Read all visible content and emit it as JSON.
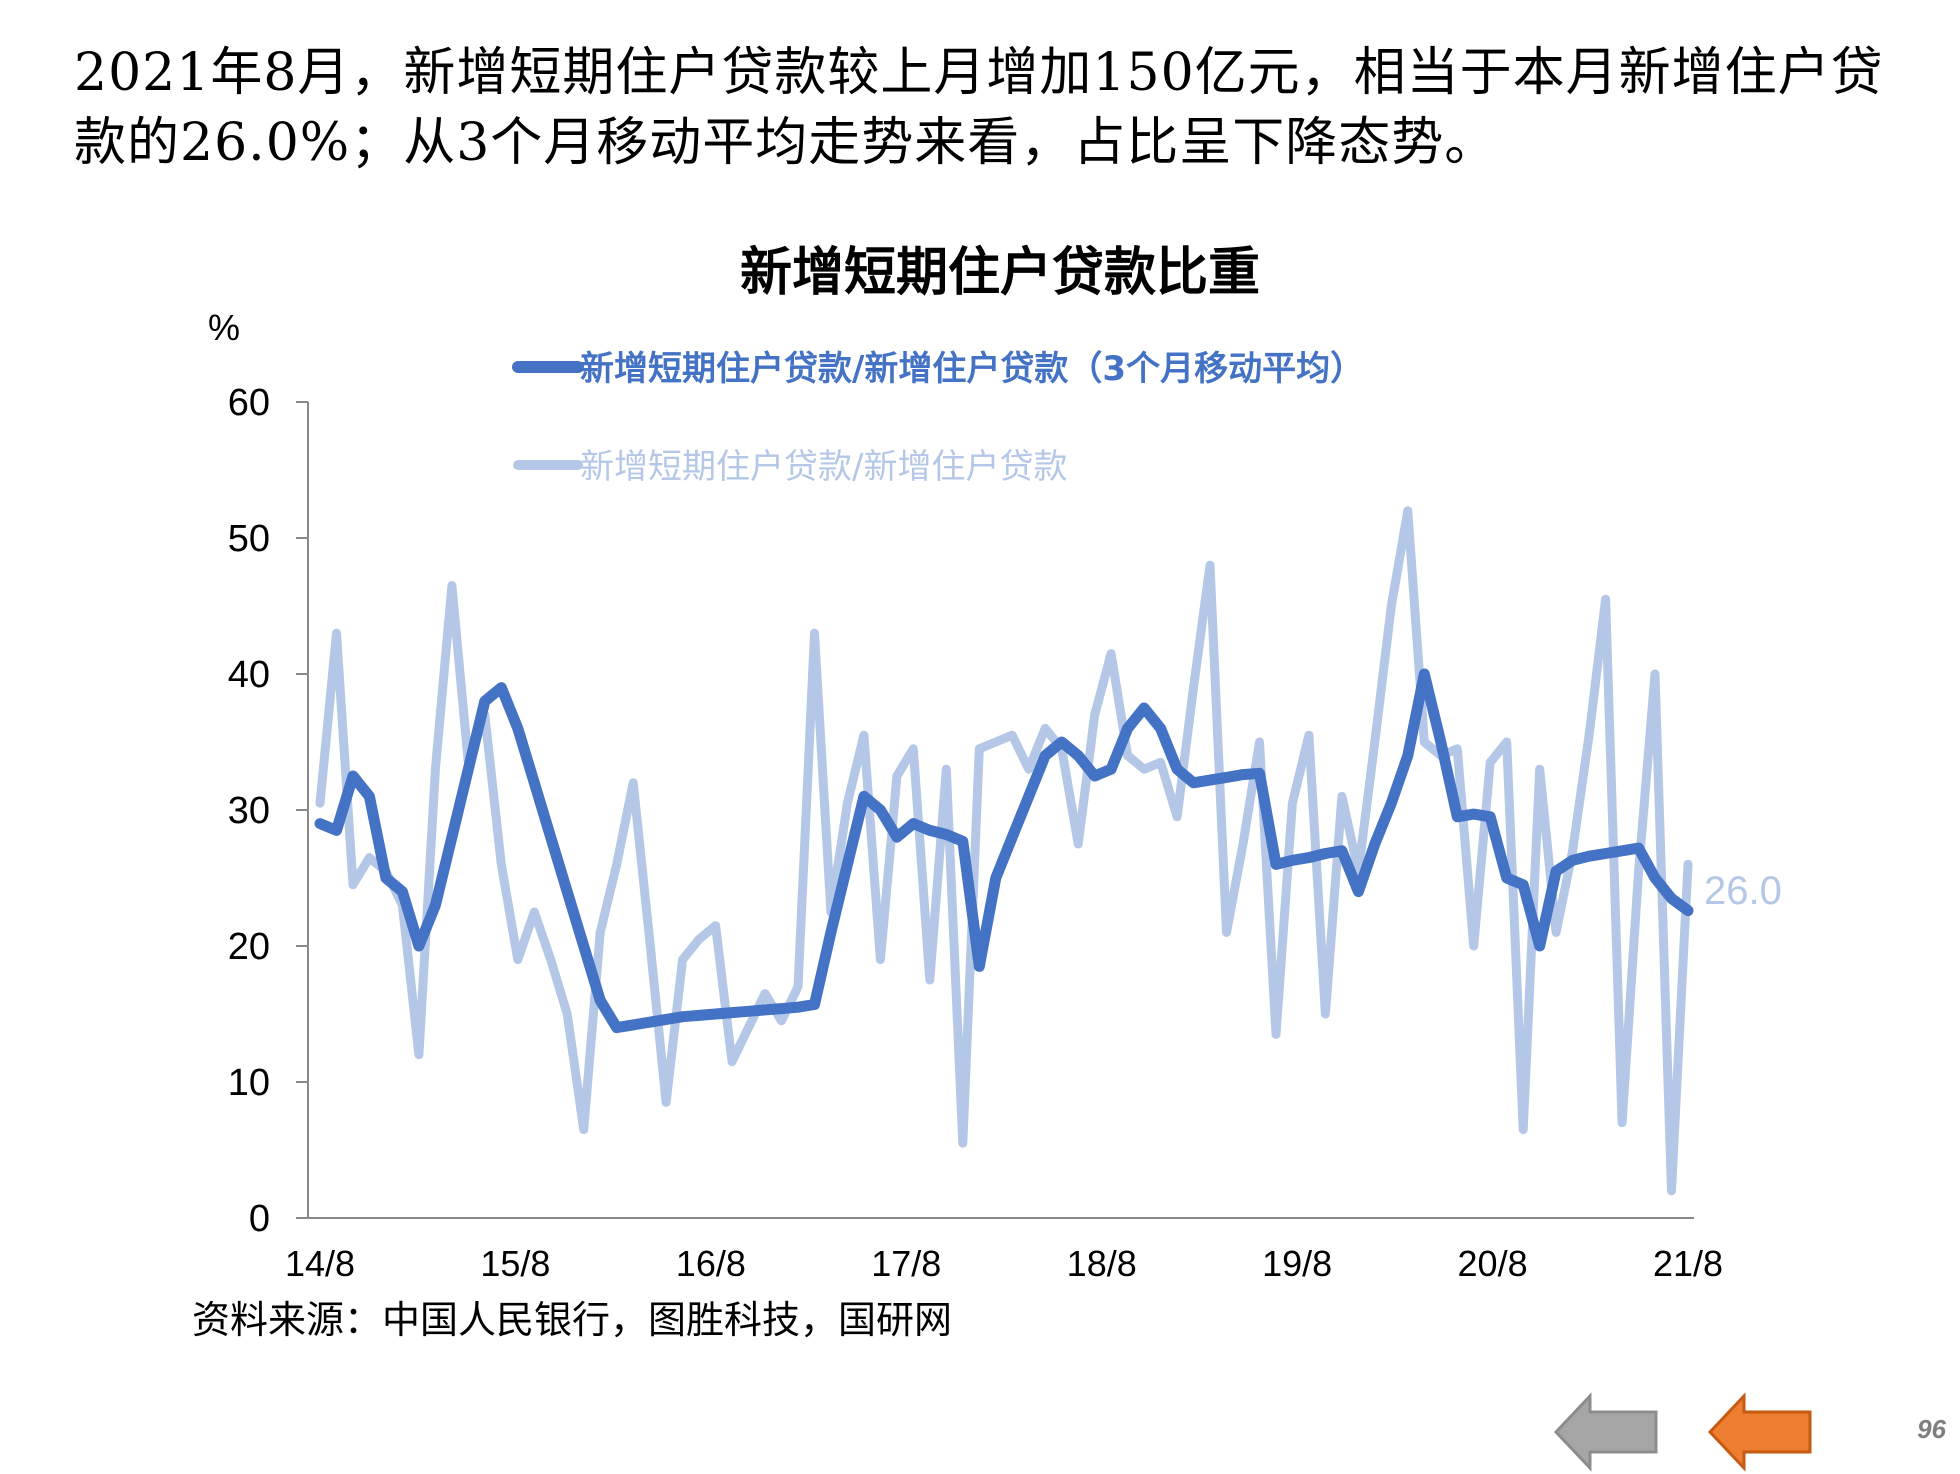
{
  "headline": "2021年8月，新增短期住户贷款较上月增加150亿元，相当于本月新增住户贷款的26.0%；从3个月移动平均走势来看，占比呈下降态势。",
  "source": "资料来源：中国人民银行，图胜科技，国研网",
  "page_number": "96",
  "navigation": {
    "prev_icon": "arrow-left-gray-icon",
    "next_icon": "arrow-left-orange-icon"
  },
  "colors": {
    "ma3": "#4472C4",
    "monthly": "#B4C7E7",
    "prev_arrow": "#A6A6A6",
    "next_arrow": "#ED7D31"
  },
  "chart_data": {
    "type": "line",
    "title": "新增短期住户贷款比重",
    "ylabel": "%",
    "ylim": [
      0,
      60
    ],
    "yticks": [
      0,
      10,
      20,
      30,
      40,
      50,
      60
    ],
    "xticks": [
      "14/8",
      "15/8",
      "16/8",
      "17/8",
      "18/8",
      "19/8",
      "20/8",
      "21/8"
    ],
    "legend_position": "top",
    "grid": false,
    "end_label": "26.0",
    "series": [
      {
        "name": "新增短期住户贷款/新增住户贷款（3个月移动平均）",
        "color": "#4472C4",
        "values": [
          29,
          28.5,
          32.5,
          31,
          25,
          24,
          20,
          23,
          28,
          33,
          38,
          39,
          36,
          32,
          28,
          24,
          20,
          16,
          14,
          14.2,
          14.4,
          14.6,
          14.8,
          14.9,
          15,
          15.1,
          15.2,
          15.3,
          15.4,
          15.5,
          15.7,
          21,
          26,
          31,
          30,
          28,
          29,
          28.5,
          28.2,
          27.7,
          18.5,
          25,
          28,
          31,
          34,
          35,
          34,
          32.5,
          33,
          36,
          37.5,
          36,
          33,
          32,
          32.2,
          32.4,
          32.6,
          32.7,
          26,
          26.3,
          26.5,
          26.8,
          27,
          24,
          27.5,
          30.5,
          34,
          40,
          35,
          29.5,
          29.7,
          29.5,
          25,
          24.5,
          20,
          25.5,
          26.3,
          26.6,
          26.8,
          27,
          27.2,
          25,
          23.5,
          22.6
        ]
      },
      {
        "name": "新增短期住户贷款/新增住户贷款",
        "color": "#B4C7E7",
        "values": [
          30.5,
          43,
          24.5,
          26.5,
          25.5,
          23,
          12,
          33,
          46.5,
          33.5,
          37,
          26,
          19,
          22.5,
          19,
          15,
          6.5,
          21,
          26,
          32,
          20.5,
          8.5,
          19,
          20.5,
          21.5,
          11.5,
          14,
          16.5,
          14.5,
          17,
          43,
          22.5,
          30.5,
          35.5,
          19,
          32.5,
          34.5,
          17.5,
          33,
          5.5,
          34.5,
          35,
          35.5,
          33,
          36,
          34.5,
          27.5,
          37,
          41.5,
          34,
          33,
          33.5,
          29.5,
          39,
          48,
          21,
          27.5,
          35,
          13.5,
          30.5,
          35.5,
          15,
          31,
          25.5,
          35,
          45,
          52,
          35,
          34,
          34.5,
          20,
          33.5,
          35,
          6.5,
          33,
          21,
          27,
          35.5,
          45.5,
          7,
          25.5,
          40,
          2,
          26
        ]
      }
    ]
  }
}
